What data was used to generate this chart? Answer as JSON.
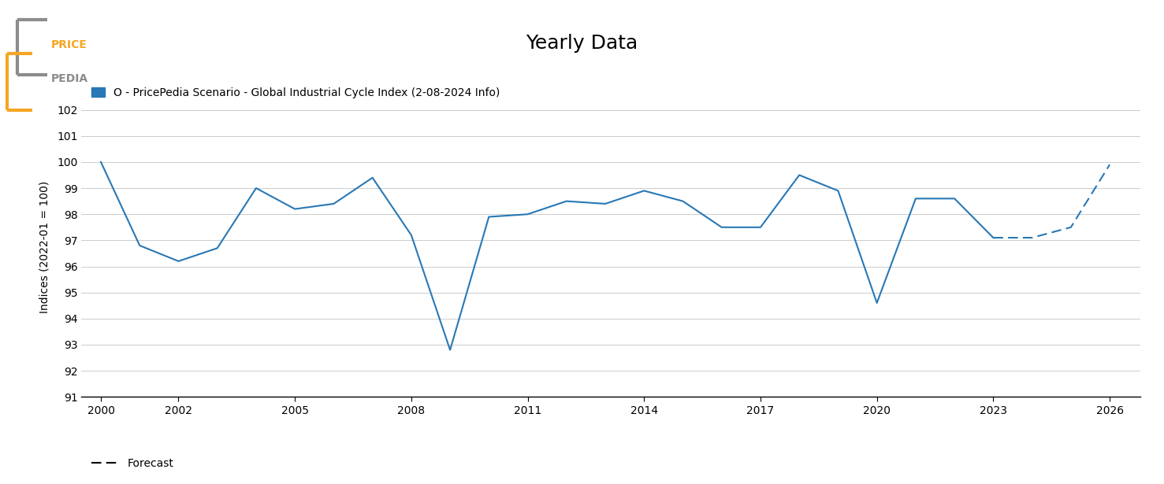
{
  "title": "Yearly Data",
  "ylabel": "Indices (2022-01 = 100)",
  "legend_label": "O - PricePedia Scenario - Global Industrial Cycle Index (2-08-2024 Info)",
  "forecast_label": "Forecast",
  "line_color": "#2878b5",
  "background_color": "#ffffff",
  "ylim": [
    91,
    102.5
  ],
  "yticks": [
    91,
    92,
    93,
    94,
    95,
    96,
    97,
    98,
    99,
    100,
    101,
    102
  ],
  "solid_data": {
    "years": [
      2000,
      2001,
      2002,
      2003,
      2004,
      2005,
      2006,
      2007,
      2008,
      2009,
      2010,
      2011,
      2012,
      2013,
      2014,
      2015,
      2016,
      2017,
      2018,
      2019,
      2020,
      2021,
      2022,
      2023
    ],
    "values": [
      100.0,
      96.8,
      96.2,
      96.7,
      99.0,
      98.2,
      98.4,
      99.4,
      97.2,
      92.8,
      97.9,
      98.0,
      98.5,
      98.4,
      98.9,
      98.5,
      97.5,
      97.5,
      99.5,
      98.9,
      94.6,
      98.6,
      98.6,
      97.1
    ]
  },
  "dashed_data": {
    "years": [
      2023,
      2024,
      2025,
      2026
    ],
    "values": [
      97.1,
      97.1,
      97.5,
      99.9
    ]
  },
  "xticks": [
    2000,
    2002,
    2005,
    2008,
    2011,
    2014,
    2017,
    2020,
    2023,
    2026
  ],
  "xlim": [
    1999.5,
    2026.8
  ],
  "logo_orange": "#F5A623",
  "logo_gray": "#8C8C8C",
  "title_fontsize": 18,
  "axis_fontsize": 10,
  "tick_fontsize": 10
}
